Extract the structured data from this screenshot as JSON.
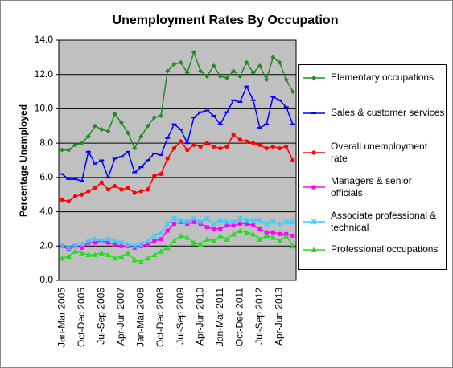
{
  "chart_data": {
    "type": "line",
    "title": "Unemployment Rates By Occupation",
    "y_label": "Percentage Unemployed",
    "categories": [
      "Jan-Mar 2005",
      null,
      null,
      "Oct-Dec 2005",
      null,
      null,
      "Jul-Sep 2006",
      null,
      null,
      "Apr-Jun 2007",
      null,
      null,
      "Jan-Mar 2008",
      null,
      null,
      "Oct-Dec 2008",
      null,
      null,
      "Jul-Sep 2009",
      null,
      null,
      "Apr-Jun 2010",
      null,
      null,
      "Jan-Mar 2011",
      null,
      null,
      "Oct-Dec 2011",
      null,
      null,
      "Jul-Sep 2012",
      null,
      null,
      "Apr-Jun 2013",
      null,
      null
    ],
    "ylim": [
      0,
      14
    ],
    "yticks": [
      {
        "value": 0,
        "label": "0.0"
      },
      {
        "value": 2,
        "label": "2.0"
      },
      {
        "value": 4,
        "label": "4.0"
      },
      {
        "value": 6,
        "label": "6.0"
      },
      {
        "value": 8,
        "label": "8.0"
      },
      {
        "value": 10,
        "label": "10.0"
      },
      {
        "value": 12,
        "label": "12.0"
      },
      {
        "value": 14,
        "label": "14.0"
      }
    ],
    "grid": true,
    "legend": "right",
    "series": [
      {
        "name": "Elementary occupations",
        "color": "#228b22",
        "marker": "diamond",
        "values": [
          7.6,
          7.6,
          7.9,
          8.0,
          8.4,
          9.0,
          8.8,
          8.7,
          9.7,
          9.2,
          8.6,
          7.7,
          8.4,
          9.0,
          9.5,
          9.6,
          12.2,
          12.6,
          12.7,
          12.1,
          13.3,
          12.2,
          11.9,
          12.5,
          11.9,
          11.8,
          12.2,
          11.9,
          12.7,
          12.1,
          12.5,
          11.7,
          13.0,
          12.7,
          11.7,
          11.0
        ]
      },
      {
        "name": "Sales & customer services",
        "color": "#0000ff",
        "marker": "dash",
        "values": [
          6.2,
          5.9,
          5.9,
          5.8,
          7.5,
          6.8,
          7.0,
          6.0,
          7.1,
          7.2,
          7.5,
          6.3,
          6.6,
          7.0,
          7.4,
          7.3,
          8.3,
          9.1,
          8.8,
          8.0,
          9.5,
          9.8,
          9.9,
          9.6,
          9.1,
          9.8,
          10.5,
          10.4,
          11.3,
          10.5,
          8.9,
          9.1,
          10.7,
          10.5,
          10.1,
          9.1
        ]
      },
      {
        "name": "Overall unemployment rate",
        "color": "#ff0000",
        "marker": "circle",
        "values": [
          4.7,
          4.6,
          4.9,
          5.0,
          5.2,
          5.4,
          5.7,
          5.3,
          5.5,
          5.3,
          5.4,
          5.1,
          5.2,
          5.3,
          6.1,
          6.2,
          7.1,
          7.7,
          8.1,
          7.6,
          7.9,
          7.8,
          8.0,
          7.8,
          7.7,
          7.8,
          8.5,
          8.2,
          8.1,
          8.0,
          7.9,
          7.7,
          7.8,
          7.7,
          7.8,
          7.0
        ]
      },
      {
        "name": "Managers & senior officials",
        "color": "#ff00ff",
        "marker": "square",
        "values": [
          2.0,
          1.8,
          2.0,
          1.9,
          2.2,
          2.2,
          2.3,
          2.2,
          2.1,
          2.0,
          2.0,
          1.9,
          2.0,
          2.1,
          2.3,
          2.4,
          2.9,
          3.3,
          3.4,
          3.3,
          3.4,
          3.3,
          3.1,
          3.0,
          3.0,
          3.2,
          3.2,
          3.3,
          3.3,
          3.2,
          3.0,
          2.8,
          2.8,
          2.7,
          2.7,
          2.6
        ]
      },
      {
        "name": "Associate professional & technical",
        "color": "#33ccff",
        "marker": "star",
        "values": [
          2.0,
          1.9,
          2.0,
          2.1,
          2.3,
          2.4,
          2.3,
          2.4,
          2.3,
          2.2,
          2.1,
          2.0,
          2.1,
          2.3,
          2.6,
          2.8,
          3.3,
          3.6,
          3.5,
          3.4,
          3.6,
          3.4,
          3.6,
          3.3,
          3.5,
          3.4,
          3.4,
          3.6,
          3.5,
          3.5,
          3.5,
          3.3,
          3.4,
          3.3,
          3.4,
          3.4
        ]
      },
      {
        "name": "Professional occupations",
        "color": "#22dd22",
        "marker": "triangle",
        "values": [
          1.3,
          1.4,
          1.7,
          1.6,
          1.5,
          1.5,
          1.6,
          1.5,
          1.3,
          1.4,
          1.6,
          1.2,
          1.1,
          1.3,
          1.5,
          1.7,
          1.9,
          2.3,
          2.6,
          2.5,
          2.2,
          2.1,
          2.4,
          2.3,
          2.6,
          2.4,
          2.7,
          2.9,
          2.8,
          2.7,
          2.4,
          2.6,
          2.5,
          2.3,
          2.6,
          2.0
        ]
      }
    ]
  }
}
